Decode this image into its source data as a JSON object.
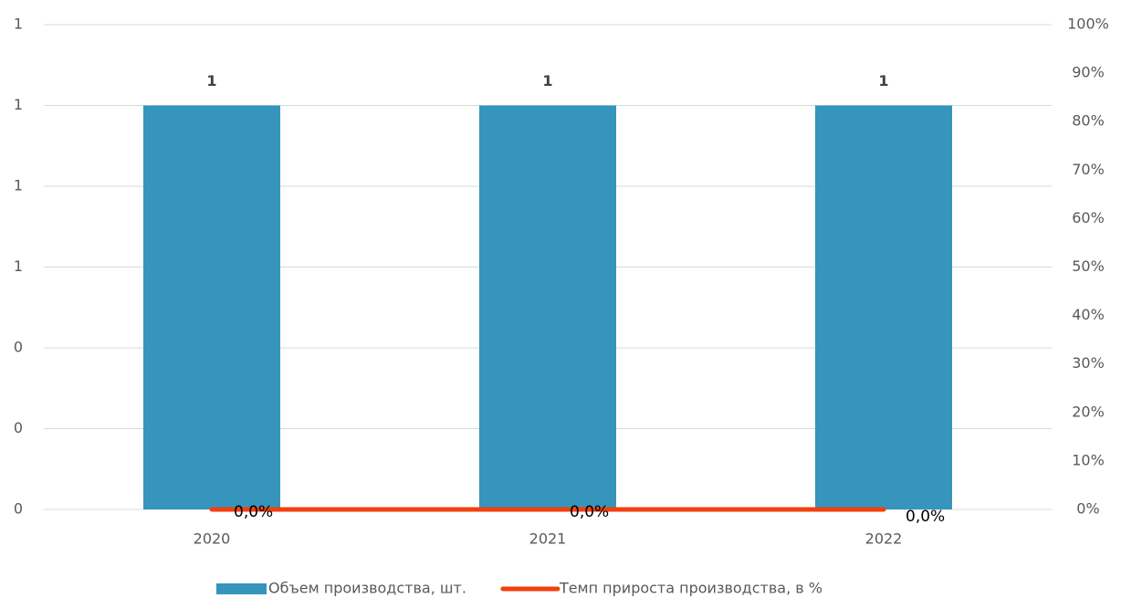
{
  "chart_data": {
    "type": "bar-line",
    "categories": [
      "2020",
      "2021",
      "2022"
    ],
    "series": [
      {
        "name": "Объем производства, шт.",
        "color": "#3595bc",
        "values": [
          1,
          1,
          1
        ],
        "value_labels": [
          "1",
          "1",
          "1"
        ]
      },
      {
        "name": "Темп прироста производства, в %",
        "color": "#f2400f",
        "values": [
          0,
          0,
          0
        ],
        "value_labels": [
          "0,0%",
          "0,0%",
          "0,0%"
        ],
        "axis": "y2"
      }
    ],
    "ylim": [
      0,
      1.2
    ],
    "yticks": [
      0,
      {
        "value": 0.2,
        "label": "0"
      },
      {
        "value": 0.4,
        "label": "0"
      },
      {
        "value": 0.6,
        "label": "1"
      },
      {
        "value": 0.8,
        "label": "1"
      },
      {
        "value": 1.0,
        "label": "1"
      },
      {
        "value": 1.2,
        "label": "1"
      }
    ],
    "y2lim": [
      0,
      100
    ],
    "y2ticks": [
      {
        "value": 0,
        "label": "0%"
      },
      {
        "value": 10,
        "label": "10%"
      },
      {
        "value": 20,
        "label": "20%"
      },
      {
        "value": 30,
        "label": "30%"
      },
      {
        "value": 40,
        "label": "40%"
      },
      {
        "value": 50,
        "label": "50%"
      },
      {
        "value": 60,
        "label": "60%"
      },
      {
        "value": 70,
        "label": "70%"
      },
      {
        "value": 80,
        "label": "80%"
      },
      {
        "value": 90,
        "label": "90%"
      },
      {
        "value": 100,
        "label": "100%"
      }
    ],
    "grid": true,
    "legend": "bottom"
  }
}
